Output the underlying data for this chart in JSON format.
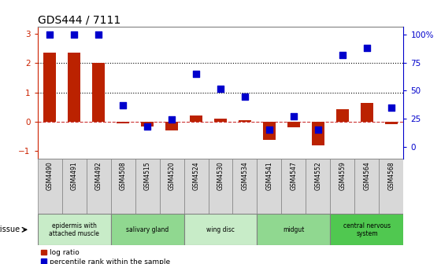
{
  "title": "GDS444 / 7111",
  "samples": [
    "GSM4490",
    "GSM4491",
    "GSM4492",
    "GSM4508",
    "GSM4515",
    "GSM4520",
    "GSM4524",
    "GSM4530",
    "GSM4534",
    "GSM4541",
    "GSM4547",
    "GSM4552",
    "GSM4559",
    "GSM4564",
    "GSM4568"
  ],
  "log_ratio": [
    2.35,
    2.35,
    2.02,
    -0.05,
    -0.15,
    -0.3,
    0.22,
    0.1,
    0.05,
    -0.62,
    -0.18,
    -0.8,
    0.42,
    0.65,
    -0.07
  ],
  "percentile": [
    100,
    100,
    100,
    37,
    18,
    24,
    65,
    52,
    45,
    15,
    27,
    15,
    82,
    88,
    35
  ],
  "tissue_groups": [
    {
      "label": "epidermis with\nattached muscle",
      "start": 0,
      "end": 3,
      "color": "#c8ecc8"
    },
    {
      "label": "salivary gland",
      "start": 3,
      "end": 6,
      "color": "#90d890"
    },
    {
      "label": "wing disc",
      "start": 6,
      "end": 9,
      "color": "#c8ecc8"
    },
    {
      "label": "midgut",
      "start": 9,
      "end": 12,
      "color": "#90d890"
    },
    {
      "label": "central nervous\nsystem",
      "start": 12,
      "end": 15,
      "color": "#50c850"
    }
  ],
  "bar_color": "#bb2200",
  "dot_color": "#0000cc",
  "left_ylim": [
    -1.25,
    3.25
  ],
  "right_ylim": [
    -10.4,
    107.3
  ],
  "left_yticks": [
    -1,
    0,
    1,
    2,
    3
  ],
  "right_yticks": [
    0,
    25,
    50,
    75,
    100
  ],
  "right_yticklabels": [
    "0",
    "25",
    "50",
    "75",
    "100%"
  ],
  "hline_y": [
    0,
    1,
    2
  ],
  "hline_colors": [
    "#cc3333",
    "black",
    "black"
  ],
  "hline_styles": [
    "--",
    ":",
    ":"
  ],
  "background_color": "#ffffff",
  "bar_width": 0.5,
  "dot_size": 28,
  "xlim": [
    -0.5,
    14.5
  ],
  "cell_color": "#d8d8d8",
  "left_color": "#cc2200",
  "right_color": "#0000cc"
}
